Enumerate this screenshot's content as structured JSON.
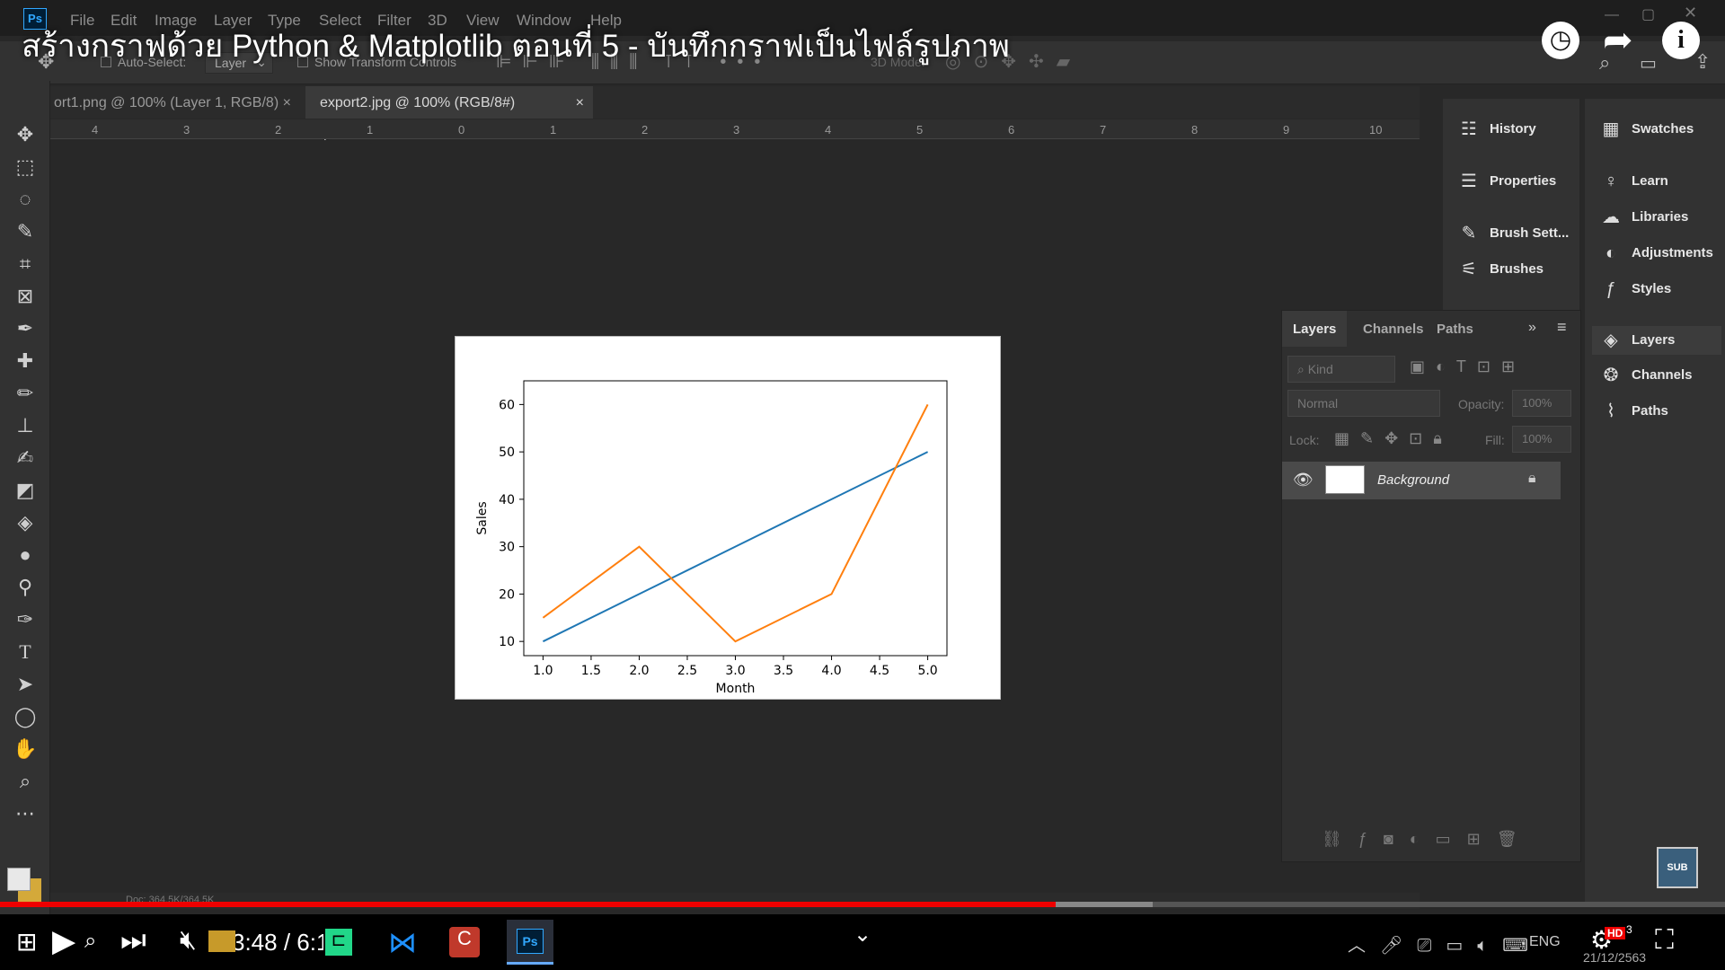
{
  "video": {
    "title": "สร้างกราฟด้วย Python & Matplotlib ตอนที่ 5 - บันทึกกราฟเป็นไฟล์รูปภาพ",
    "time": "3:48 / 6:1",
    "subscribe_badge": "SUB",
    "hd_badge": "HD"
  },
  "menu": {
    "app": "Ps",
    "items": [
      "File",
      "Edit",
      "Image",
      "Layer",
      "Type",
      "Select",
      "Filter",
      "3D",
      "View",
      "Window",
      "Help"
    ]
  },
  "options": {
    "auto_select": "Auto-Select:",
    "layer_select": "Layer",
    "transform": "Show Transform Controls",
    "mode_3d": "3D Mode:"
  },
  "tabs": [
    {
      "label": "ort1.png @ 100% (Layer 1, RGB/8)",
      "close": "×"
    },
    {
      "label": "export2.jpg @ 100% (RGB/8#)",
      "close": "×"
    }
  ],
  "ruler": {
    "labels": [
      "4",
      "3",
      "2",
      "1",
      "0",
      "1",
      "2",
      "3",
      "4",
      "5",
      "6",
      "7",
      "8",
      "9",
      "10"
    ]
  },
  "status": {
    "doc": "Doc: 364.5K/364.5K"
  },
  "panels_left": [
    "History",
    "Properties",
    "Brush Sett...",
    "Brushes"
  ],
  "panels_right": [
    "Swatches",
    "Learn",
    "Libraries",
    "Adjustments",
    "Styles",
    "Layers",
    "Channels",
    "Paths"
  ],
  "layers": {
    "tabs": [
      "Layers",
      "Channels",
      "Paths"
    ],
    "kind": "Kind",
    "blend": "Normal",
    "opacity_label": "Opacity:",
    "opacity": "100%",
    "lock_label": "Lock:",
    "fill_label": "Fill:",
    "fill": "100%",
    "layer_name": "Background"
  },
  "taskbar": {
    "lang": "ENG",
    "date": "21/12/2563",
    "notif": "3"
  },
  "chart_data": {
    "type": "line",
    "xlabel": "Month",
    "ylabel": "Sales",
    "xlim": [
      0.8,
      5.2
    ],
    "ylim": [
      7,
      65
    ],
    "xticks": [
      1.0,
      1.5,
      2.0,
      2.5,
      3.0,
      3.5,
      4.0,
      4.5,
      5.0
    ],
    "xtick_labels": [
      "1.0",
      "1.5",
      "2.0",
      "2.5",
      "3.0",
      "3.5",
      "4.0",
      "4.5",
      "5.0"
    ],
    "yticks": [
      10,
      20,
      30,
      40,
      50,
      60
    ],
    "ytick_labels": [
      "10",
      "20",
      "30",
      "40",
      "50",
      "60"
    ],
    "series": [
      {
        "x": [
          1,
          2,
          3,
          4,
          5
        ],
        "values": [
          10,
          20,
          30,
          40,
          50
        ],
        "color": "#1f77b4"
      },
      {
        "x": [
          1,
          2,
          3,
          4,
          5
        ],
        "values": [
          15,
          30,
          10,
          20,
          60
        ],
        "color": "#ff7f0e"
      }
    ]
  }
}
